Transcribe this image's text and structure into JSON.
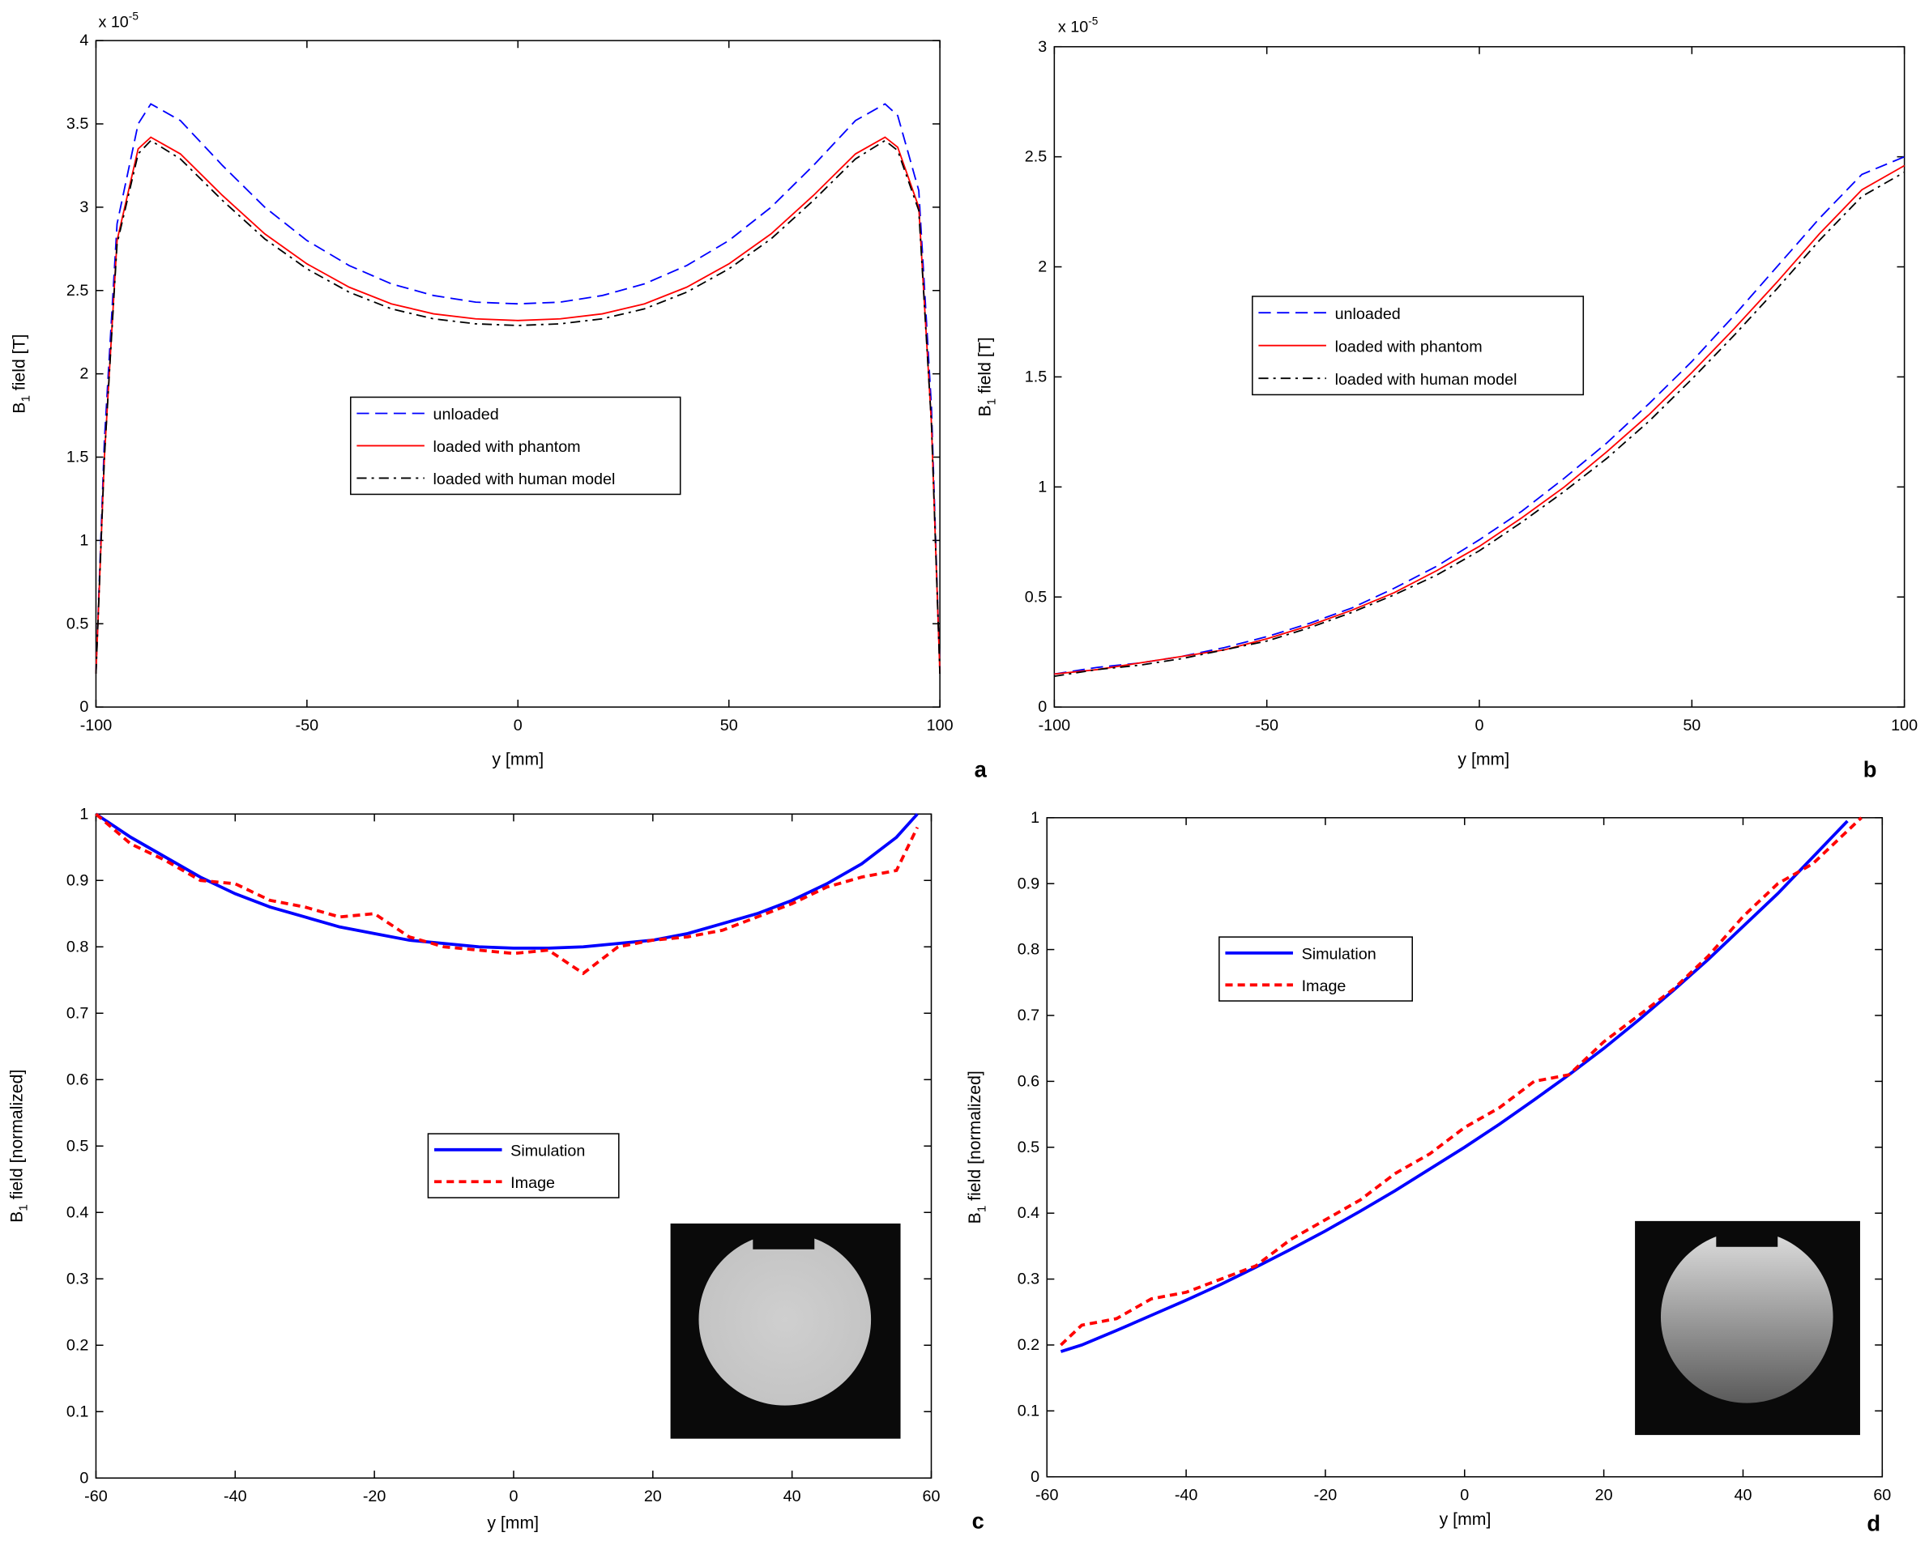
{
  "chart_data": {
    "charts": [
      {
        "type": "line",
        "panel_label": "a",
        "xlabel": "y [mm]",
        "ylabel_parts": [
          "B",
          "1",
          " field [T]"
        ],
        "y_multiplier": {
          "base": "x 10",
          "exponent": "-5"
        },
        "xlim": [
          -100,
          100
        ],
        "xticks": [
          -100,
          -50,
          0,
          50,
          100
        ],
        "ylim": [
          0,
          4
        ],
        "yticks": [
          0,
          0.5,
          1,
          1.5,
          2,
          2.5,
          3,
          3.5,
          4
        ],
        "x": [
          -100,
          -98,
          -95,
          -90,
          -87,
          -80,
          -70,
          -60,
          -50,
          -40,
          -30,
          -20,
          -10,
          0,
          10,
          20,
          30,
          40,
          50,
          60,
          70,
          80,
          87,
          90,
          95,
          98,
          100
        ],
        "series": [
          {
            "name": "unloaded",
            "color": "#0000ff",
            "linestyle": "dashed",
            "values": [
              0.2,
              1.6,
              2.9,
              3.5,
              3.62,
              3.52,
              3.25,
              3.0,
              2.8,
              2.65,
              2.54,
              2.47,
              2.43,
              2.42,
              2.43,
              2.47,
              2.54,
              2.65,
              2.8,
              3.0,
              3.25,
              3.52,
              3.62,
              3.55,
              3.1,
              1.8,
              0.2
            ]
          },
          {
            "name": "loaded with phantom",
            "color": "#ff0000",
            "linestyle": "solid",
            "values": [
              0.2,
              1.5,
              2.8,
              3.35,
              3.42,
              3.32,
              3.07,
              2.84,
              2.66,
              2.52,
              2.42,
              2.36,
              2.33,
              2.32,
              2.33,
              2.36,
              2.42,
              2.52,
              2.66,
              2.84,
              3.07,
              3.32,
              3.42,
              3.36,
              3.0,
              1.7,
              0.2
            ]
          },
          {
            "name": "loaded with human model",
            "color": "#000000",
            "linestyle": "dashdot",
            "values": [
              0.2,
              1.5,
              2.78,
              3.32,
              3.4,
              3.29,
              3.04,
              2.81,
              2.63,
              2.49,
              2.39,
              2.33,
              2.3,
              2.29,
              2.3,
              2.33,
              2.39,
              2.49,
              2.63,
              2.81,
              3.04,
              3.29,
              3.4,
              3.34,
              2.98,
              1.7,
              0.2
            ]
          }
        ]
      },
      {
        "type": "line",
        "panel_label": "b",
        "xlabel": "y [mm]",
        "ylabel_parts": [
          "B",
          "1",
          " field [T]"
        ],
        "y_multiplier": {
          "base": "x 10",
          "exponent": "-5"
        },
        "xlim": [
          -100,
          100
        ],
        "xticks": [
          -100,
          -50,
          0,
          50,
          100
        ],
        "ylim": [
          0,
          3
        ],
        "yticks": [
          0,
          0.5,
          1,
          1.5,
          2,
          2.5,
          3
        ],
        "x": [
          -100,
          -90,
          -80,
          -70,
          -60,
          -50,
          -40,
          -30,
          -20,
          -10,
          0,
          10,
          20,
          30,
          40,
          50,
          60,
          70,
          80,
          90,
          100
        ],
        "series": [
          {
            "name": "unloaded",
            "color": "#0000ff",
            "linestyle": "dashed",
            "values": [
              0.15,
              0.18,
              0.2,
              0.23,
              0.27,
              0.32,
              0.38,
              0.45,
              0.54,
              0.64,
              0.76,
              0.89,
              1.04,
              1.2,
              1.38,
              1.57,
              1.78,
              2.0,
              2.22,
              2.42,
              2.5
            ]
          },
          {
            "name": "loaded with phantom",
            "color": "#ff0000",
            "linestyle": "solid",
            "values": [
              0.15,
              0.17,
              0.2,
              0.23,
              0.26,
              0.31,
              0.37,
              0.44,
              0.52,
              0.62,
              0.73,
              0.86,
              1.0,
              1.16,
              1.33,
              1.52,
              1.72,
              1.93,
              2.15,
              2.35,
              2.46
            ]
          },
          {
            "name": "loaded with human model",
            "color": "#000000",
            "linestyle": "dashdot",
            "values": [
              0.14,
              0.17,
              0.19,
              0.22,
              0.26,
              0.3,
              0.36,
              0.43,
              0.51,
              0.6,
              0.71,
              0.84,
              0.98,
              1.13,
              1.3,
              1.49,
              1.69,
              1.9,
              2.12,
              2.32,
              2.43
            ]
          }
        ]
      },
      {
        "type": "line",
        "panel_label": "c",
        "xlabel": "y [mm]",
        "ylabel_parts": [
          "B",
          "1",
          " field [normalized]"
        ],
        "xlim": [
          -60,
          60
        ],
        "xticks": [
          -60,
          -40,
          -20,
          0,
          20,
          40,
          60
        ],
        "ylim": [
          0,
          1
        ],
        "yticks": [
          0,
          0.1,
          0.2,
          0.3,
          0.4,
          0.5,
          0.6,
          0.7,
          0.8,
          0.9,
          1
        ],
        "x": [
          -60,
          -55,
          -50,
          -45,
          -40,
          -35,
          -30,
          -25,
          -20,
          -15,
          -10,
          -5,
          0,
          5,
          10,
          15,
          20,
          25,
          30,
          35,
          40,
          45,
          50,
          55,
          58
        ],
        "series": [
          {
            "name": "Simulation",
            "color": "#0000ff",
            "linestyle": "solid",
            "values": [
              1.0,
              0.965,
              0.935,
              0.905,
              0.88,
              0.86,
              0.845,
              0.83,
              0.82,
              0.81,
              0.805,
              0.8,
              0.798,
              0.798,
              0.8,
              0.805,
              0.81,
              0.82,
              0.835,
              0.85,
              0.87,
              0.895,
              0.925,
              0.965,
              1.0
            ]
          },
          {
            "name": "Image",
            "color": "#ff0000",
            "linestyle": "dashed",
            "values": [
              1.0,
              0.955,
              0.93,
              0.9,
              0.895,
              0.87,
              0.86,
              0.845,
              0.85,
              0.815,
              0.8,
              0.795,
              0.79,
              0.795,
              0.76,
              0.8,
              0.81,
              0.815,
              0.825,
              0.845,
              0.865,
              0.89,
              0.905,
              0.915,
              0.98
            ]
          }
        ]
      },
      {
        "type": "line",
        "panel_label": "d",
        "xlabel": "y [mm]",
        "ylabel_parts": [
          "B",
          "1",
          " field [normalized]"
        ],
        "xlim": [
          -60,
          60
        ],
        "xticks": [
          -60,
          -40,
          -20,
          0,
          20,
          40,
          60
        ],
        "ylim": [
          0,
          1
        ],
        "yticks": [
          0,
          0.1,
          0.2,
          0.3,
          0.4,
          0.5,
          0.6,
          0.7,
          0.8,
          0.9,
          1
        ],
        "x": [
          -58,
          -55,
          -50,
          -45,
          -40,
          -35,
          -30,
          -25,
          -20,
          -15,
          -10,
          -5,
          0,
          5,
          10,
          15,
          20,
          25,
          30,
          35,
          40,
          45,
          50,
          55,
          57
        ],
        "series": [
          {
            "name": "Simulation",
            "color": "#0000ff",
            "linestyle": "solid",
            "values": [
              0.19,
              0.2,
              0.222,
              0.245,
              0.268,
              0.292,
              0.318,
              0.345,
              0.373,
              0.403,
              0.434,
              0.467,
              0.5,
              0.535,
              0.572,
              0.61,
              0.65,
              0.693,
              0.738,
              0.785,
              0.835,
              0.885,
              0.94,
              0.995,
              null
            ]
          },
          {
            "name": "Image",
            "color": "#ff0000",
            "linestyle": "dashed",
            "values": [
              0.2,
              0.23,
              0.24,
              0.27,
              0.28,
              0.3,
              0.32,
              0.36,
              0.39,
              0.42,
              0.46,
              0.49,
              0.53,
              0.56,
              0.6,
              0.61,
              0.66,
              0.7,
              0.74,
              0.79,
              0.85,
              0.9,
              0.93,
              0.98,
              1.0
            ]
          }
        ]
      }
    ]
  }
}
